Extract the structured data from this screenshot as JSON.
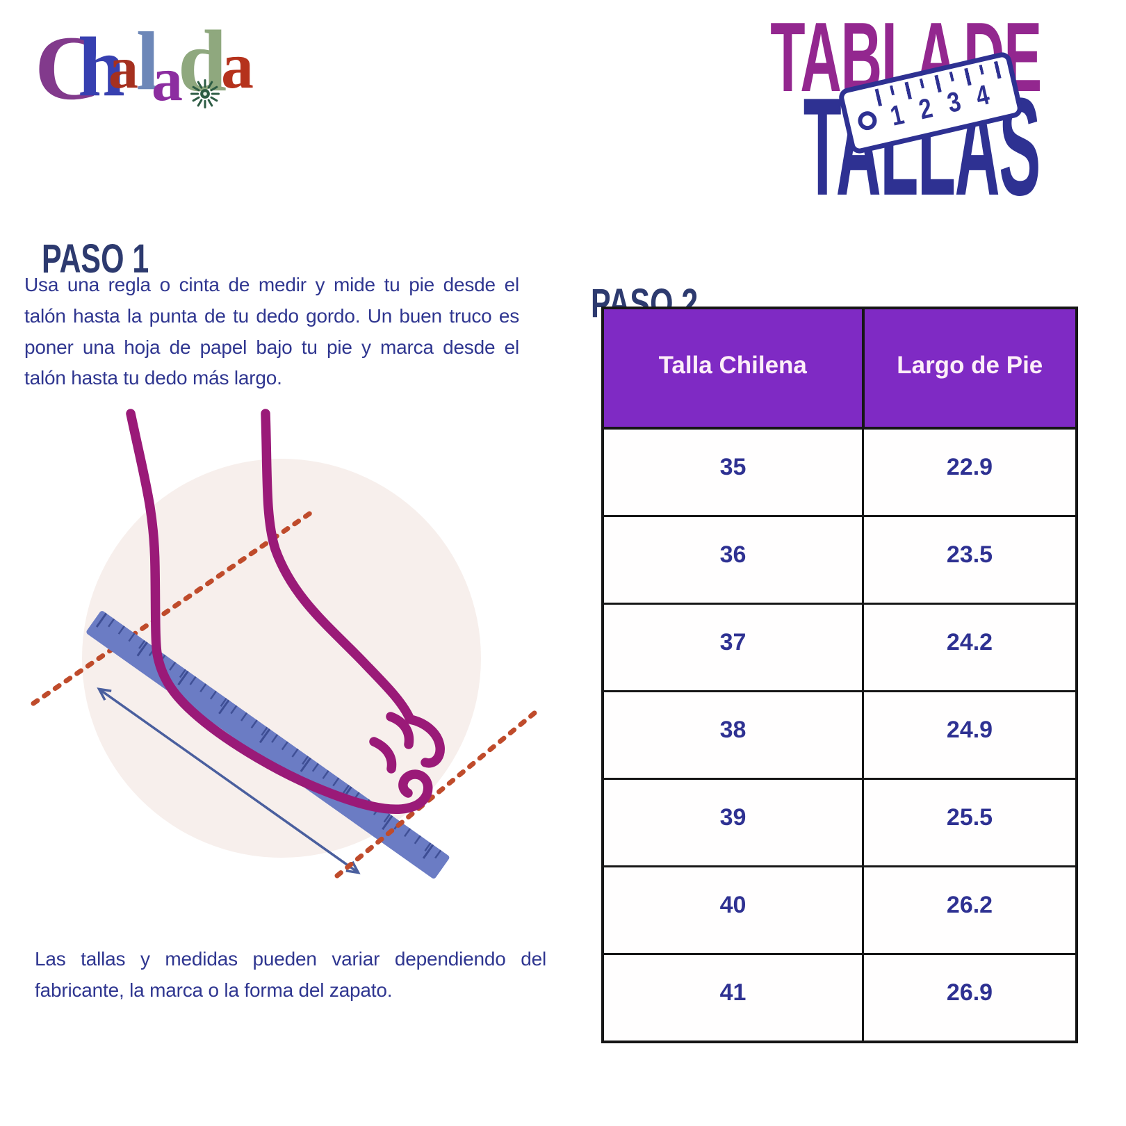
{
  "brand": {
    "name": "Chalada",
    "letters": [
      "C",
      "h",
      "a",
      "l",
      "a",
      "d",
      "a"
    ]
  },
  "title": {
    "line1": "TABLA DE",
    "line2": "TALLAS",
    "ruler_icon_numbers": [
      "1",
      "2",
      "3",
      "4"
    ]
  },
  "step1": {
    "heading": "PASO 1",
    "body": "Usa una regla o cinta de medir y mide tu pie desde el talón hasta la punta de tu dedo gordo. Un buen truco es poner una hoja de papel bajo tu pie y marca desde el talón hasta tu dedo más largo."
  },
  "step2": {
    "heading": "PASO 2"
  },
  "size_table": {
    "headers": [
      "Talla Chilena",
      "Largo de Pie"
    ],
    "rows": [
      [
        "35",
        "22.9"
      ],
      [
        "36",
        "23.5"
      ],
      [
        "37",
        "24.2"
      ],
      [
        "38",
        "24.9"
      ],
      [
        "39",
        "25.5"
      ],
      [
        "40",
        "26.2"
      ],
      [
        "41",
        "26.9"
      ]
    ]
  },
  "disclaimer": "Las tallas y medidas pueden variar dependiendo del fabricante, la marca o la forma del zapato.",
  "colors": {
    "title_magenta": "#93278f",
    "title_navy": "#2e3192",
    "heading_navy": "#2d3a6f",
    "body_text": "#2f3690",
    "table_header_bg": "#7f2ac4",
    "table_header_text": "#fdeef8",
    "table_cell_text": "#2e3192",
    "table_border": "#161616",
    "foot_outline": "#9a1a78",
    "illustration_circle": "#f7efec",
    "ruler_blue": "#6b7cc4",
    "dotted_guide": "#bf4b2b",
    "measure_arrow": "#4a5f9e",
    "logo_colors": [
      "#823a8c",
      "#3740b0",
      "#a5301f",
      "#6d87b8",
      "#8c2da0",
      "#8fa87e",
      "#b5321c"
    ]
  }
}
